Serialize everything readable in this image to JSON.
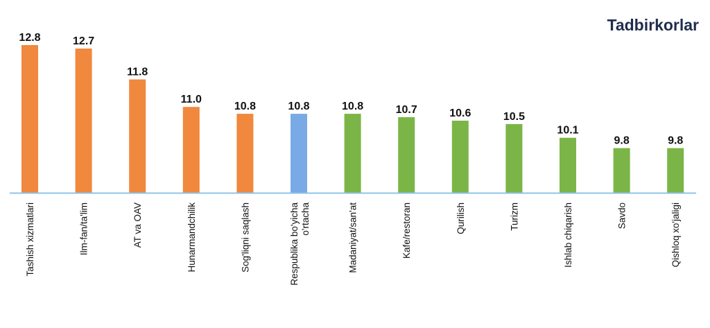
{
  "chart_data": {
    "type": "bar",
    "title": "Tadbirkorlar",
    "xlabel": "",
    "ylabel": "",
    "ylim": [
      8.5,
      12.8
    ],
    "grid": false,
    "categories": [
      "Tashish xizmatlari",
      "Ilm-fan/ta'lim",
      "AT va OAV",
      "Hunarmandchilik",
      "Sog'liqni saqlash",
      "Respublika bo'yicha o'rtacha",
      "Madaniyat/san'at",
      "Kafe/restoran",
      "Qurilish",
      "Turizm",
      "Ishlab chiqarish",
      "Savdo",
      "Qishloq xo'jaligi"
    ],
    "values": [
      12.8,
      12.7,
      11.8,
      11.0,
      10.8,
      10.8,
      10.8,
      10.7,
      10.6,
      10.5,
      10.1,
      9.8,
      9.8
    ],
    "value_labels": [
      "12.8",
      "12.7",
      "11.8",
      "11.0",
      "10.8",
      "10.8",
      "10.8",
      "10.7",
      "10.6",
      "10.5",
      "10.1",
      "9.8",
      "9.8"
    ],
    "bar_colors": [
      "#f0883e",
      "#f0883e",
      "#f0883e",
      "#f0883e",
      "#f0883e",
      "#7aaae6",
      "#7bb547",
      "#7bb547",
      "#7bb547",
      "#7bb547",
      "#7bb547",
      "#7bb547",
      "#7bb547"
    ],
    "axis_color": "#8fc3ea"
  }
}
